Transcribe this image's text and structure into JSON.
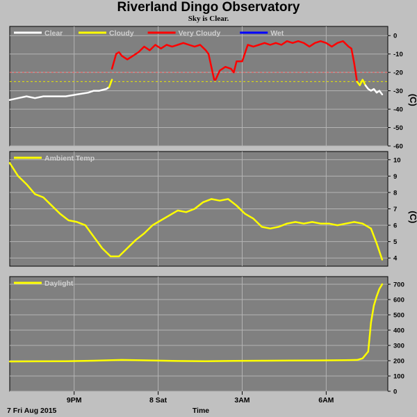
{
  "title": "Riverland Dingo Observatory",
  "subtitle": "Sky is Clear.",
  "x_date_label": "7 Fri Aug 2015",
  "x_axis_label": "Time",
  "chart_data": [
    {
      "type": "line",
      "name": "sky",
      "unit": "(C)",
      "xlim": [
        0,
        13.5
      ],
      "ylim": [
        -60,
        5
      ],
      "yticks": [
        0,
        -10,
        -20,
        -30,
        -40,
        -50,
        -60
      ],
      "thresholds": [
        {
          "value": -20,
          "color": "#ff6060"
        },
        {
          "value": -25,
          "color": "#e8e800"
        }
      ],
      "legend": [
        {
          "label": "Clear",
          "color": "#ffffff"
        },
        {
          "label": "Cloudy",
          "color": "#ffff00"
        },
        {
          "label": "Very Cloudy",
          "color": "#ff0000"
        },
        {
          "label": "Wet",
          "color": "#0000ff"
        }
      ],
      "series": [
        {
          "name": "Clear",
          "color": "#ffffff",
          "x": [
            0,
            0.3,
            0.6,
            0.9,
            1.2,
            1.6,
            2.0,
            2.4,
            2.8,
            3.0,
            3.2,
            3.45,
            3.55
          ],
          "y": [
            -35,
            -34,
            -33,
            -34,
            -33,
            -33,
            -33,
            -32,
            -31,
            -30,
            -30,
            -29,
            -28
          ]
        },
        {
          "name": "Cloudy",
          "color": "#ffff00",
          "x": [
            3.55,
            3.6,
            3.65
          ],
          "y": [
            -28,
            -26,
            -24
          ]
        },
        {
          "name": "Very Cloudy",
          "color": "#ff0000",
          "x": [
            3.65,
            3.8,
            3.9,
            4.0,
            4.2,
            4.4,
            4.6,
            4.8,
            5.0,
            5.2,
            5.4,
            5.6,
            5.8,
            6.0,
            6.2,
            6.4,
            6.6,
            6.8,
            7.0,
            7.1,
            7.2,
            7.3,
            7.35,
            7.5,
            7.7,
            7.9,
            8.0,
            8.1,
            8.3,
            8.5,
            8.7,
            8.9,
            9.1,
            9.3,
            9.5,
            9.7,
            9.9,
            10.1,
            10.3,
            10.5,
            10.7,
            10.9,
            11.1,
            11.3,
            11.5,
            11.7,
            11.9,
            12.1,
            12.2,
            12.3,
            12.4
          ],
          "y": [
            -18,
            -10,
            -9,
            -11,
            -13,
            -11,
            -9,
            -6,
            -8,
            -5,
            -7,
            -5,
            -6,
            -5,
            -4,
            -5,
            -6,
            -5,
            -8,
            -10,
            -17,
            -24,
            -24,
            -19,
            -17,
            -18,
            -20,
            -14,
            -14,
            -5,
            -6,
            -5,
            -4,
            -5,
            -4,
            -5,
            -3,
            -4,
            -3,
            -4,
            -6,
            -4,
            -3,
            -4,
            -6,
            -4,
            -3,
            -6,
            -7,
            -15,
            -25
          ]
        },
        {
          "name": "Cloudy",
          "color": "#ffff00",
          "x": [
            12.4,
            12.5,
            12.6,
            12.7
          ],
          "y": [
            -25,
            -27,
            -24,
            -27
          ]
        },
        {
          "name": "Clear",
          "color": "#ffffff",
          "x": [
            12.7,
            12.8,
            12.9,
            13.0,
            13.1,
            13.2,
            13.3
          ],
          "y": [
            -27,
            -29,
            -30,
            -29,
            -31,
            -30,
            -32
          ]
        }
      ]
    },
    {
      "type": "line",
      "name": "ambient",
      "unit": "(C)",
      "xlim": [
        0,
        13.5
      ],
      "ylim": [
        3.5,
        10.5
      ],
      "yticks": [
        10,
        9,
        8,
        7,
        6,
        5,
        4
      ],
      "legend": [
        {
          "label": "Ambient Temp",
          "color": "#ffff00"
        }
      ],
      "series": [
        {
          "name": "Ambient Temp",
          "color": "#ffff00",
          "x": [
            0,
            0.3,
            0.6,
            0.9,
            1.2,
            1.5,
            1.8,
            2.1,
            2.4,
            2.7,
            3.0,
            3.3,
            3.6,
            3.9,
            4.2,
            4.5,
            4.8,
            5.1,
            5.4,
            5.7,
            6.0,
            6.3,
            6.6,
            6.9,
            7.2,
            7.5,
            7.8,
            8.1,
            8.4,
            8.7,
            9.0,
            9.3,
            9.6,
            9.9,
            10.2,
            10.5,
            10.8,
            11.1,
            11.4,
            11.7,
            12.0,
            12.3,
            12.6,
            12.9,
            13.1,
            13.3
          ],
          "y": [
            9.8,
            9.0,
            8.5,
            7.9,
            7.7,
            7.2,
            6.7,
            6.3,
            6.2,
            6.0,
            5.3,
            4.6,
            4.1,
            4.1,
            4.6,
            5.1,
            5.5,
            6.0,
            6.3,
            6.6,
            6.9,
            6.8,
            7.0,
            7.4,
            7.6,
            7.5,
            7.6,
            7.2,
            6.7,
            6.4,
            5.9,
            5.8,
            5.9,
            6.1,
            6.2,
            6.1,
            6.2,
            6.1,
            6.1,
            6.0,
            6.1,
            6.2,
            6.1,
            5.8,
            4.9,
            3.9
          ]
        }
      ]
    },
    {
      "type": "line",
      "name": "daylight",
      "unit": "",
      "xlim": [
        0,
        13.5
      ],
      "ylim": [
        0,
        750
      ],
      "yticks": [
        700,
        600,
        500,
        400,
        300,
        200,
        100,
        0
      ],
      "legend": [
        {
          "label": "Daylight",
          "color": "#ffff00"
        }
      ],
      "series": [
        {
          "name": "Daylight",
          "color": "#ffff00",
          "x": [
            0,
            1,
            2,
            3,
            4,
            5,
            6,
            7,
            8,
            9,
            10,
            11,
            12,
            12.4,
            12.6,
            12.8,
            12.9,
            13.0,
            13.1,
            13.2,
            13.3
          ],
          "y": [
            195,
            196,
            197,
            200,
            205,
            202,
            198,
            197,
            199,
            200,
            201,
            202,
            203,
            205,
            215,
            260,
            450,
            560,
            620,
            670,
            700
          ]
        }
      ]
    }
  ],
  "x_ticks": [
    {
      "x": 2.3,
      "label": "9PM"
    },
    {
      "x": 5.3,
      "label": "8 Sat"
    },
    {
      "x": 8.3,
      "label": "3AM"
    },
    {
      "x": 11.3,
      "label": "6AM"
    }
  ]
}
